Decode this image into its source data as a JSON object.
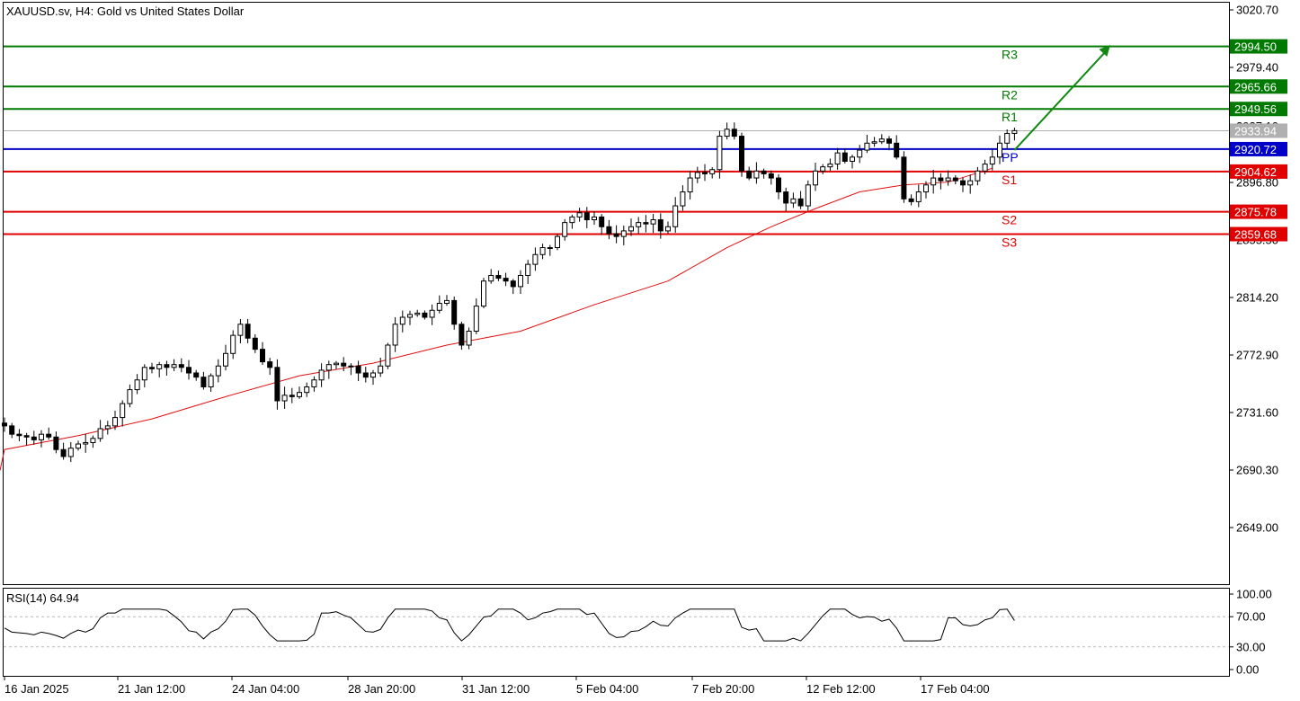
{
  "header": {
    "title": "XAUUSD.sv, H4:  Gold vs United States Dollar"
  },
  "rsi_panel": {
    "label": "RSI(14) 64.94"
  },
  "colors": {
    "resistance": "#007a00",
    "pivot": "#0000c8",
    "support": "#e00000",
    "ma": "#e01010",
    "current": "#b0b0b0",
    "arrow": "#118811",
    "candle_outline": "#000000",
    "rsi_line": "#000000"
  },
  "chart_data": [
    {
      "type": "candlestick",
      "symbol": "XAUUSD.sv",
      "timeframe": "H4",
      "description": "Gold vs United States Dollar",
      "ylim": [
        2600,
        3020.7
      ],
      "y_ticks": [
        "3020.70",
        "2979.40",
        "2937.10",
        "2896.80",
        "2855.50",
        "2814.20",
        "2772.90",
        "2731.60",
        "2690.30",
        "2649.00"
      ],
      "x_ticks": [
        "16 Jan 2025",
        "21 Jan 12:00",
        "24 Jan 04:00",
        "28 Jan 20:00",
        "31 Jan 12:00",
        "5 Feb 04:00",
        "7 Feb 20:00",
        "12 Feb 12:00",
        "17 Feb 04:00"
      ],
      "current_price": "2933.94",
      "levels": [
        {
          "name": "R3",
          "value": "2994.50",
          "kind": "resistance"
        },
        {
          "name": "R2",
          "value": "2965.66",
          "kind": "resistance"
        },
        {
          "name": "R1",
          "value": "2949.56",
          "kind": "resistance"
        },
        {
          "name": "PP",
          "value": "2920.72",
          "kind": "pivot"
        },
        {
          "name": "S1",
          "value": "2904.62",
          "kind": "support"
        },
        {
          "name": "S2",
          "value": "2875.78",
          "kind": "support"
        },
        {
          "name": "S3",
          "value": "2859.68",
          "kind": "support"
        }
      ],
      "trend_arrow": {
        "from_bar": 137,
        "from_price": 2920.0,
        "to_bar": 150,
        "to_price": 2995.5,
        "direction": "up"
      },
      "moving_average": {
        "bars": [
          0,
          10,
          20,
          30,
          40,
          50,
          60,
          70,
          80,
          90,
          98,
          104,
          110,
          116,
          122,
          128,
          134
        ],
        "values": [
          2705,
          2715,
          2727,
          2743,
          2758,
          2767,
          2780,
          2790,
          2809,
          2826,
          2850,
          2865,
          2878,
          2890,
          2895,
          2897,
          2907
        ]
      },
      "closes": [
        2722,
        2716,
        2715,
        2714,
        2712,
        2716,
        2714,
        2705,
        2700,
        2706,
        2709,
        2710,
        2713,
        2720,
        2722,
        2728,
        2738,
        2748,
        2755,
        2764,
        2763,
        2766,
        2764,
        2766,
        2764,
        2760,
        2757,
        2750,
        2758,
        2765,
        2774,
        2787,
        2795,
        2785,
        2777,
        2768,
        2764,
        2740,
        2744,
        2743,
        2746,
        2750,
        2755,
        2762,
        2766,
        2767,
        2765,
        2765,
        2760,
        2757,
        2760,
        2765,
        2780,
        2795,
        2800,
        2802,
        2803,
        2800,
        2805,
        2810,
        2812,
        2795,
        2780,
        2790,
        2808,
        2826,
        2830,
        2828,
        2826,
        2822,
        2830,
        2838,
        2845,
        2850,
        2850,
        2858,
        2868,
        2872,
        2875,
        2870,
        2872,
        2865,
        2860,
        2858,
        2862,
        2865,
        2868,
        2867,
        2870,
        2862,
        2865,
        2880,
        2890,
        2900,
        2904,
        2903,
        2906,
        2930,
        2935,
        2930,
        2905,
        2900,
        2905,
        2903,
        2900,
        2890,
        2882,
        2885,
        2880,
        2895,
        2905,
        2908,
        2910,
        2918,
        2912,
        2915,
        2920,
        2925,
        2926,
        2928,
        2925,
        2915,
        2885,
        2883,
        2890,
        2895,
        2900,
        2898,
        2900,
        2898,
        2895,
        2898,
        2905,
        2910,
        2915,
        2925,
        2932,
        2934
      ]
    },
    {
      "type": "line",
      "name": "RSI(14)",
      "ylim": [
        0,
        100
      ],
      "y_ticks": [
        "100.00",
        "70.00",
        "30.00",
        "0.00"
      ],
      "reference_levels": [
        70,
        30
      ],
      "last_value": 64.94
    }
  ]
}
